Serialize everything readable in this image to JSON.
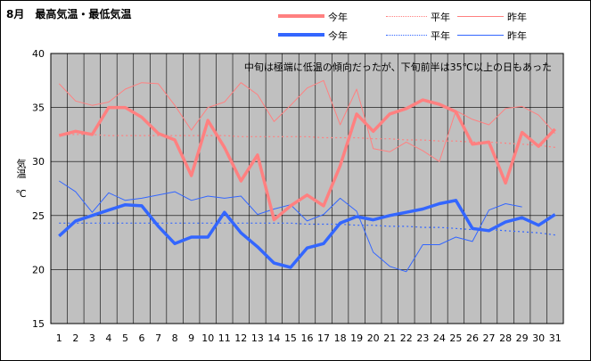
{
  "chart_data": {
    "type": "line",
    "title": "8月　最高気温・最低気温",
    "ylabel": "気温　℃",
    "annotation": "中旬は極端に低温の傾向だったが、下旬前半は35℃以上の日もあった",
    "ylim": [
      15,
      40
    ],
    "yticks": [
      15,
      20,
      25,
      30,
      35,
      40
    ],
    "grid": true,
    "legend_placement": "top",
    "categories": [
      "1",
      "2",
      "3",
      "4",
      "5",
      "6",
      "7",
      "8",
      "9",
      "10",
      "11",
      "12",
      "13",
      "14",
      "15",
      "16",
      "17",
      "18",
      "19",
      "20",
      "21",
      "22",
      "23",
      "24",
      "25",
      "26",
      "27",
      "28",
      "29",
      "30",
      "31"
    ],
    "series": [
      {
        "group": "max",
        "name": "今年",
        "style": "thick",
        "color": "#ff8080",
        "values": [
          32.4,
          32.8,
          32.5,
          35.0,
          35.0,
          34.1,
          32.6,
          32.0,
          28.7,
          33.8,
          31.3,
          28.2,
          30.6,
          24.6,
          25.9,
          26.9,
          25.9,
          29.6,
          34.4,
          32.8,
          34.4,
          34.9,
          35.7,
          35.3,
          34.6,
          31.6,
          31.8,
          28.0,
          32.7,
          31.4,
          33.0
        ]
      },
      {
        "group": "max",
        "name": "平年",
        "style": "dotted",
        "color": "#ff8080",
        "values": [
          32.5,
          32.5,
          32.5,
          32.4,
          32.4,
          32.4,
          32.4,
          32.4,
          32.4,
          32.4,
          32.4,
          32.3,
          32.3,
          32.3,
          32.3,
          32.3,
          32.2,
          32.2,
          32.2,
          32.1,
          32.1,
          32.0,
          32.0,
          31.9,
          31.9,
          31.8,
          31.8,
          31.7,
          31.6,
          31.5,
          31.3
        ]
      },
      {
        "group": "max",
        "name": "昨年",
        "style": "thin",
        "color": "#ff8080",
        "values": [
          37.2,
          35.6,
          35.2,
          35.5,
          36.7,
          37.3,
          37.2,
          35.2,
          32.9,
          35.0,
          35.5,
          37.3,
          36.2,
          33.7,
          35.2,
          36.8,
          37.5,
          33.4,
          36.7,
          31.2,
          30.9,
          31.8,
          31.0,
          30.0,
          34.7,
          33.9,
          33.4,
          34.9,
          35.1,
          34.3,
          32.6
        ]
      },
      {
        "group": "min",
        "name": "今年",
        "style": "thick",
        "color": "#3366ff",
        "values": [
          23.1,
          24.5,
          25.0,
          25.5,
          26.0,
          25.9,
          24.0,
          22.4,
          23.0,
          23.0,
          25.3,
          23.4,
          22.1,
          20.6,
          20.2,
          22.0,
          22.4,
          24.3,
          24.9,
          24.6,
          25.0,
          25.3,
          25.6,
          26.1,
          26.4,
          23.8,
          23.6,
          24.4,
          24.8,
          24.1,
          25.1
        ]
      },
      {
        "group": "min",
        "name": "平年",
        "style": "dotted",
        "color": "#3366ff",
        "values": [
          24.3,
          24.3,
          24.3,
          24.3,
          24.3,
          24.3,
          24.3,
          24.3,
          24.3,
          24.3,
          24.3,
          24.3,
          24.3,
          24.3,
          24.3,
          24.2,
          24.2,
          24.2,
          24.1,
          24.1,
          24.0,
          24.0,
          23.9,
          23.9,
          23.8,
          23.7,
          23.7,
          23.6,
          23.5,
          23.4,
          23.2
        ]
      },
      {
        "group": "min",
        "name": "昨年",
        "style": "thin",
        "color": "#3366ff",
        "values": [
          28.2,
          27.2,
          25.3,
          27.1,
          26.4,
          26.6,
          26.9,
          27.2,
          26.4,
          26.8,
          26.6,
          26.8,
          25.1,
          25.6,
          26.0,
          24.5,
          25.1,
          26.6,
          25.4,
          21.6,
          20.3,
          19.8,
          22.3,
          22.3,
          23.0,
          22.6,
          25.5,
          26.1,
          25.8,
          null,
          null
        ]
      }
    ]
  }
}
